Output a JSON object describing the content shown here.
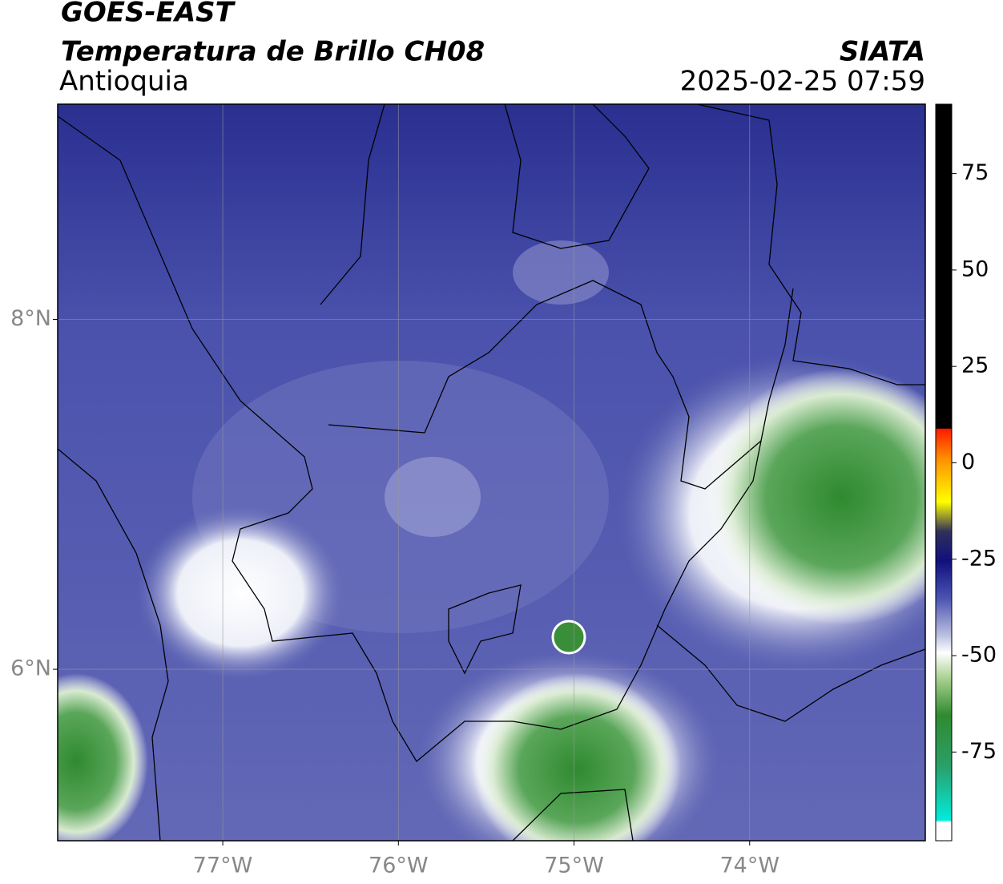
{
  "header": {
    "title": "GOES-EAST",
    "subtitle": "Temperatura de Brillo CH08",
    "region": "Antioquia",
    "source": "SIATA",
    "datetime": "2025-02-25 07:59"
  },
  "map": {
    "xlim": [
      -77.94,
      -73.0
    ],
    "ylim": [
      5.02,
      9.23
    ],
    "xticks": [
      {
        "value": -77,
        "label": "77°W"
      },
      {
        "value": -76,
        "label": "76°W"
      },
      {
        "value": -75,
        "label": "75°W"
      },
      {
        "value": -74,
        "label": "74°W"
      }
    ],
    "yticks": [
      {
        "value": 8,
        "label": "8°N"
      },
      {
        "value": 6,
        "label": "6°N"
      }
    ],
    "grid": true
  },
  "colorbar": {
    "lim": [
      -98,
      93
    ],
    "ticks": [
      75,
      50,
      25,
      0,
      -25,
      -50,
      -75
    ]
  }
}
